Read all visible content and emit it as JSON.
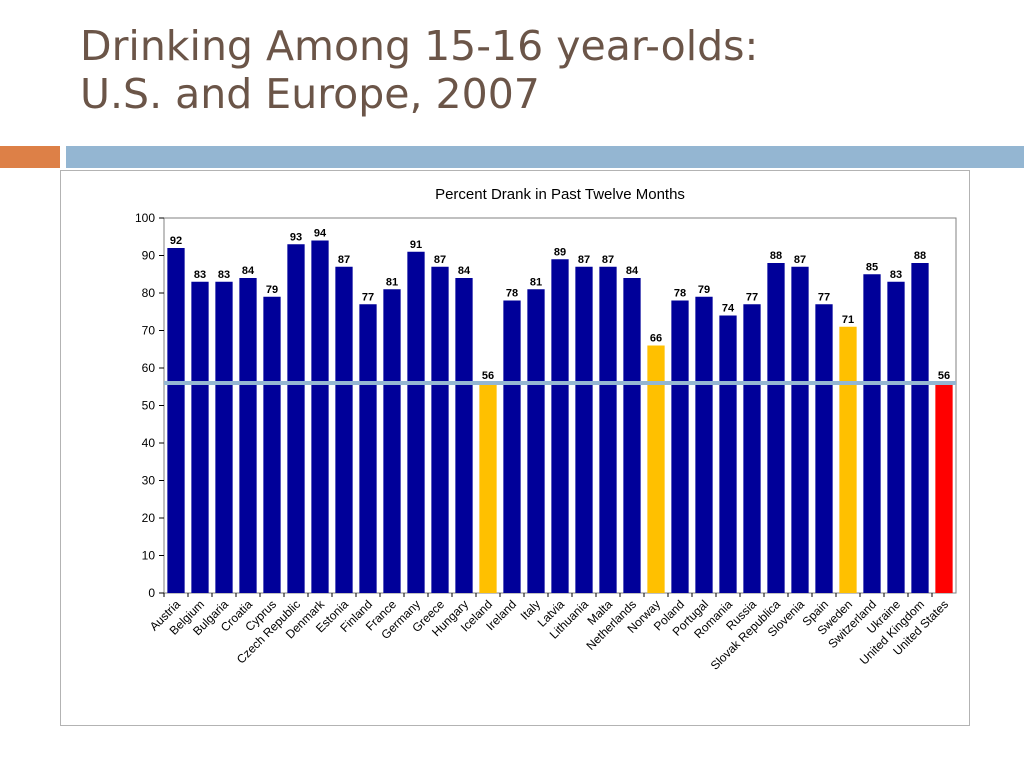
{
  "slide": {
    "title_line1": "Drinking Among 15-16 year-olds:",
    "title_line2": "U.S. and Europe, 2007"
  },
  "colors": {
    "title": "#6b5548",
    "accent_orange": "#dd8047",
    "accent_blue": "#94b6d2",
    "bar_default": "#000099",
    "bar_highlight": "#ffc000",
    "bar_us": "#ff0000",
    "reference_line": "#94b6d2"
  },
  "chart_data": {
    "type": "bar",
    "title": "Percent Drank in Past Twelve Months",
    "xlabel": "",
    "ylabel": "",
    "ylim": [
      0,
      100
    ],
    "yticks": [
      0,
      10,
      20,
      30,
      40,
      50,
      60,
      70,
      80,
      90,
      100
    ],
    "grid": false,
    "legend": "none",
    "reference_line_value": 56,
    "categories": [
      "Austria",
      "Belgium",
      "Bulgaria",
      "Croatia",
      "Cyprus",
      "Czech Republic",
      "Denmark",
      "Estonia",
      "Finland",
      "France",
      "Germany",
      "Greece",
      "Hungary",
      "Iceland",
      "Ireland",
      "Italy",
      "Latvia",
      "Lithuania",
      "Malta",
      "Netherlands",
      "Norway",
      "Poland",
      "Portugal",
      "Romania",
      "Russia",
      "Slovak Republica",
      "Slovenia",
      "Spain",
      "Sweden",
      "Switzerland",
      "Ukraine",
      "United Kingdom",
      "United States"
    ],
    "values": [
      92,
      83,
      83,
      84,
      79,
      93,
      94,
      87,
      77,
      81,
      91,
      87,
      84,
      56,
      78,
      81,
      89,
      87,
      87,
      84,
      66,
      78,
      79,
      74,
      77,
      88,
      87,
      77,
      71,
      85,
      83,
      88,
      56
    ],
    "highlight": [
      "default",
      "default",
      "default",
      "default",
      "default",
      "default",
      "default",
      "default",
      "default",
      "default",
      "default",
      "default",
      "default",
      "highlight",
      "default",
      "default",
      "default",
      "default",
      "default",
      "default",
      "highlight",
      "default",
      "default",
      "default",
      "default",
      "default",
      "default",
      "default",
      "highlight",
      "default",
      "default",
      "default",
      "us"
    ]
  }
}
